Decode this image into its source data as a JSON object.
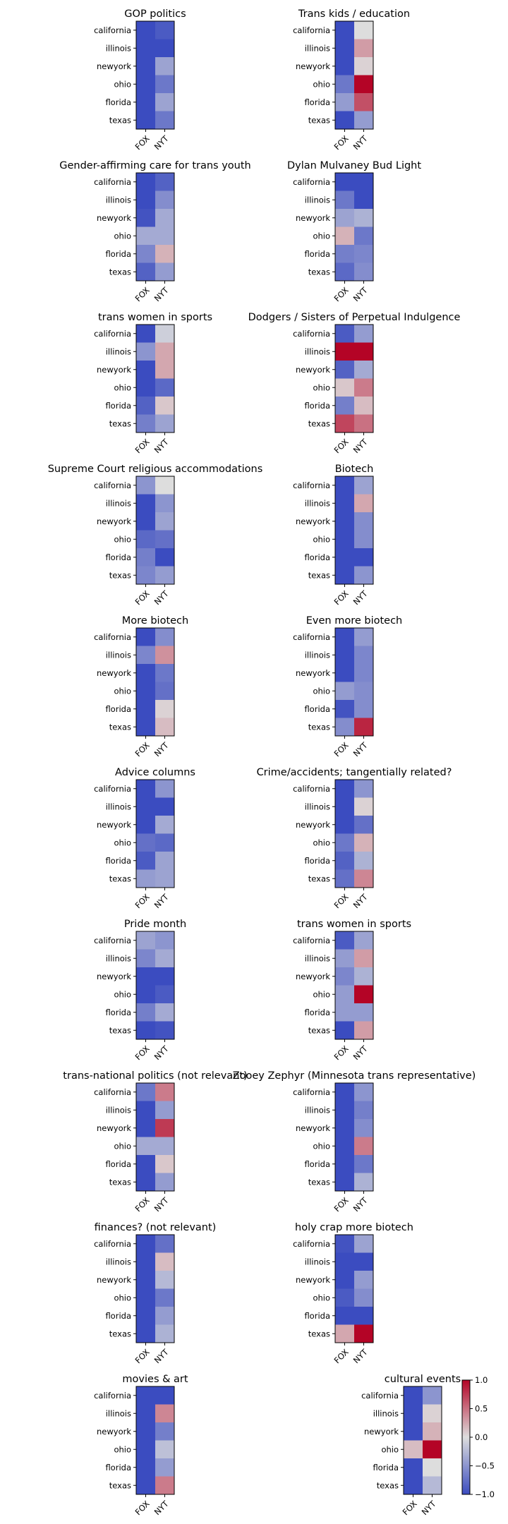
{
  "chart_data": {
    "type": "heatmap",
    "rows": [
      "california",
      "illinois",
      "newyork",
      "ohio",
      "florida",
      "texas"
    ],
    "columns": [
      "FOX",
      "NYT"
    ],
    "colormap": "coolwarm",
    "colormap_stops": [
      "#3b4cc0",
      "#dddddd",
      "#b40426"
    ],
    "vmin": -1,
    "vmax": 1,
    "colorbar_ticks": [
      "1.0",
      "0.5",
      "0.0",
      "−0.5",
      "−1.0"
    ],
    "colorbar_tick_values": [
      1.0,
      0.5,
      0.0,
      -0.5,
      -1.0
    ],
    "panels": [
      {
        "title": "GOP politics",
        "values": [
          [
            -1.0,
            -0.9
          ],
          [
            -1.0,
            -1.0
          ],
          [
            -1.0,
            -0.4
          ],
          [
            -1.0,
            -0.7
          ],
          [
            -1.0,
            -0.4
          ],
          [
            -1.0,
            -0.7
          ]
        ]
      },
      {
        "title": "Trans kids / education",
        "values": [
          [
            -1.0,
            0.0
          ],
          [
            -1.0,
            0.3
          ],
          [
            -1.0,
            0.05
          ],
          [
            -0.7,
            1.0
          ],
          [
            -0.45,
            0.65
          ],
          [
            -1.0,
            -0.45
          ]
        ]
      },
      {
        "title": "Gender-affirming care for trans youth",
        "values": [
          [
            -1.0,
            -0.85
          ],
          [
            -1.0,
            -0.55
          ],
          [
            -0.95,
            -0.35
          ],
          [
            -0.35,
            -0.35
          ],
          [
            -0.6,
            0.2
          ],
          [
            -0.85,
            -0.45
          ]
        ]
      },
      {
        "title": "Dylan Mulvaney Bud Light",
        "values": [
          [
            -1.0,
            -1.0
          ],
          [
            -0.7,
            -1.0
          ],
          [
            -0.4,
            -0.3
          ],
          [
            0.2,
            -0.7
          ],
          [
            -0.65,
            -0.6
          ],
          [
            -0.8,
            -0.55
          ]
        ]
      },
      {
        "title": "trans women in sports",
        "values": [
          [
            -1.0,
            -0.1
          ],
          [
            -0.5,
            0.25
          ],
          [
            -1.0,
            0.25
          ],
          [
            -1.0,
            -0.8
          ],
          [
            -0.85,
            0.1
          ],
          [
            -0.65,
            -0.4
          ]
        ]
      },
      {
        "title": "Dodgers / Sisters of Perpetual Indulgence",
        "values": [
          [
            -0.9,
            -0.45
          ],
          [
            1.0,
            1.0
          ],
          [
            -0.85,
            -0.35
          ],
          [
            0.1,
            0.45
          ],
          [
            -0.65,
            0.15
          ],
          [
            0.7,
            0.5
          ]
        ]
      },
      {
        "title": "Supreme Court religious accommodations",
        "values": [
          [
            -0.5,
            0.0
          ],
          [
            -1.0,
            -0.5
          ],
          [
            -1.0,
            -0.4
          ],
          [
            -0.8,
            -0.75
          ],
          [
            -0.65,
            -1.0
          ],
          [
            -0.6,
            -0.45
          ]
        ]
      },
      {
        "title": "Biotech",
        "values": [
          [
            -1.0,
            -0.4
          ],
          [
            -1.0,
            0.25
          ],
          [
            -1.0,
            -0.55
          ],
          [
            -1.0,
            -0.55
          ],
          [
            -1.0,
            -1.0
          ],
          [
            -1.0,
            -0.5
          ]
        ]
      },
      {
        "title": "More biotech",
        "values": [
          [
            -1.0,
            -0.55
          ],
          [
            -0.6,
            0.35
          ],
          [
            -1.0,
            -0.7
          ],
          [
            -1.0,
            -0.75
          ],
          [
            -1.0,
            0.05
          ],
          [
            -1.0,
            0.15
          ]
        ]
      },
      {
        "title": "Even more biotech",
        "values": [
          [
            -1.0,
            -0.45
          ],
          [
            -1.0,
            -0.6
          ],
          [
            -1.0,
            -0.6
          ],
          [
            -0.45,
            -0.55
          ],
          [
            -0.95,
            -0.55
          ],
          [
            -0.55,
            0.85
          ]
        ]
      },
      {
        "title": "Advice columns",
        "values": [
          [
            -1.0,
            -0.5
          ],
          [
            -1.0,
            -1.0
          ],
          [
            -1.0,
            -0.35
          ],
          [
            -0.75,
            -0.8
          ],
          [
            -0.9,
            -0.4
          ],
          [
            -0.45,
            -0.4
          ]
        ]
      },
      {
        "title": "Crime/accidents; tangentially related?",
        "values": [
          [
            -1.0,
            -0.5
          ],
          [
            -1.0,
            0.05
          ],
          [
            -1.0,
            -0.75
          ],
          [
            -0.7,
            0.2
          ],
          [
            -0.85,
            -0.3
          ],
          [
            -0.75,
            0.4
          ]
        ]
      },
      {
        "title": "Pride month",
        "values": [
          [
            -0.4,
            -0.5
          ],
          [
            -0.6,
            -0.35
          ],
          [
            -1.0,
            -1.0
          ],
          [
            -1.0,
            -0.9
          ],
          [
            -0.65,
            -0.35
          ],
          [
            -1.0,
            -0.95
          ]
        ]
      },
      {
        "title": "trans women in sports",
        "values": [
          [
            -0.9,
            -0.4
          ],
          [
            -0.45,
            0.3
          ],
          [
            -0.6,
            -0.3
          ],
          [
            -0.45,
            1.0
          ],
          [
            -0.45,
            -0.45
          ],
          [
            -1.0,
            0.3
          ]
        ]
      },
      {
        "title": "trans-national politics (not relevant)",
        "values": [
          [
            -0.7,
            0.45
          ],
          [
            -1.0,
            -0.45
          ],
          [
            -1.0,
            0.75
          ],
          [
            -0.35,
            -0.35
          ],
          [
            -1.0,
            0.1
          ],
          [
            -1.0,
            -0.45
          ]
        ]
      },
      {
        "title": "Zooey Zephyr (Minnesota trans representative)",
        "values": [
          [
            -1.0,
            -0.5
          ],
          [
            -1.0,
            -0.65
          ],
          [
            -1.0,
            -0.55
          ],
          [
            -1.0,
            0.45
          ],
          [
            -1.0,
            -0.7
          ],
          [
            -1.0,
            -0.3
          ]
        ]
      },
      {
        "title": "finances? (not relevant)",
        "values": [
          [
            -1.0,
            -0.75
          ],
          [
            -1.0,
            0.15
          ],
          [
            -1.0,
            -0.25
          ],
          [
            -1.0,
            -0.7
          ],
          [
            -1.0,
            -0.45
          ],
          [
            -1.0,
            -0.3
          ]
        ]
      },
      {
        "title": "holy crap more biotech",
        "values": [
          [
            -0.95,
            -0.4
          ],
          [
            -1.0,
            -1.0
          ],
          [
            -1.0,
            -0.45
          ],
          [
            -0.9,
            -0.55
          ],
          [
            -1.0,
            -1.0
          ],
          [
            0.25,
            1.0
          ]
        ]
      },
      {
        "title": "movies & art",
        "values": [
          [
            -1.0,
            -1.0
          ],
          [
            -1.0,
            0.4
          ],
          [
            -1.0,
            -0.65
          ],
          [
            -1.0,
            -0.2
          ],
          [
            -1.0,
            -0.45
          ],
          [
            -1.0,
            0.45
          ]
        ]
      },
      {
        "title": "cultural events",
        "values": [
          [
            -1.0,
            -0.5
          ],
          [
            -1.0,
            0.05
          ],
          [
            -1.0,
            0.2
          ],
          [
            0.15,
            1.0
          ],
          [
            -1.0,
            0.0
          ],
          [
            -1.0,
            -0.25
          ]
        ]
      }
    ]
  }
}
